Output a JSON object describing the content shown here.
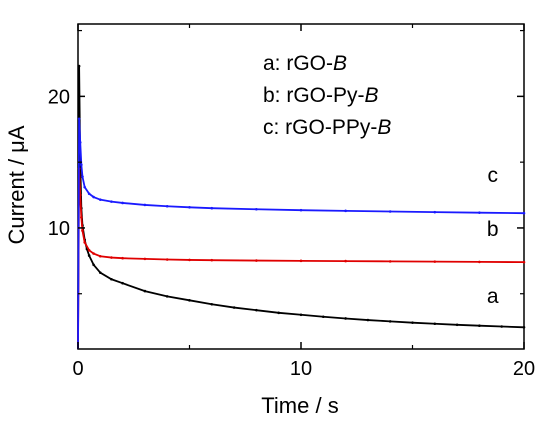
{
  "chart_data": {
    "type": "line",
    "xlabel": "Time / s",
    "ylabel": "Current / μA",
    "xlim": [
      0,
      20
    ],
    "ylim": [
      0.8,
      25.5
    ],
    "x_ticks": [
      0,
      10,
      20
    ],
    "y_ticks": [
      10,
      20
    ],
    "grid": false,
    "legend": {
      "placement": "top-center",
      "entries": [
        {
          "prefix": "a: rGO-",
          "suffix": "B"
        },
        {
          "prefix": "b: rGO-Py-",
          "suffix": "B"
        },
        {
          "prefix": "c: rGO-PPy-",
          "suffix": "B"
        }
      ]
    },
    "series": [
      {
        "name": "a",
        "color": "#000000",
        "points": [
          [
            0.05,
            22.3
          ],
          [
            0.1,
            15.0
          ],
          [
            0.15,
            11.5
          ],
          [
            0.2,
            10.2
          ],
          [
            0.3,
            9.1
          ],
          [
            0.4,
            8.4
          ],
          [
            0.5,
            7.9
          ],
          [
            0.7,
            7.2
          ],
          [
            1.0,
            6.6
          ],
          [
            1.5,
            6.1
          ],
          [
            2,
            5.8
          ],
          [
            3,
            5.2
          ],
          [
            4,
            4.8
          ],
          [
            5,
            4.5
          ],
          [
            6,
            4.2
          ],
          [
            7,
            3.95
          ],
          [
            8,
            3.75
          ],
          [
            9,
            3.55
          ],
          [
            10,
            3.4
          ],
          [
            11,
            3.25
          ],
          [
            12,
            3.12
          ],
          [
            13,
            3.0
          ],
          [
            14,
            2.9
          ],
          [
            15,
            2.8
          ],
          [
            16,
            2.72
          ],
          [
            17,
            2.64
          ],
          [
            18,
            2.57
          ],
          [
            19,
            2.51
          ],
          [
            20,
            2.45
          ]
        ]
      },
      {
        "name": "b",
        "color": "#e00000",
        "points": [
          [
            0.05,
            14.5
          ],
          [
            0.1,
            12.5
          ],
          [
            0.15,
            10.8
          ],
          [
            0.2,
            9.8
          ],
          [
            0.3,
            8.9
          ],
          [
            0.5,
            8.3
          ],
          [
            0.7,
            8.05
          ],
          [
            1.0,
            7.85
          ],
          [
            1.5,
            7.75
          ],
          [
            2,
            7.7
          ],
          [
            3,
            7.65
          ],
          [
            4,
            7.6
          ],
          [
            5,
            7.57
          ],
          [
            6,
            7.55
          ],
          [
            8,
            7.52
          ],
          [
            10,
            7.5
          ],
          [
            12,
            7.48
          ],
          [
            14,
            7.46
          ],
          [
            16,
            7.44
          ],
          [
            18,
            7.42
          ],
          [
            20,
            7.4
          ]
        ]
      },
      {
        "name": "c",
        "color": "#1a1aff",
        "points": [
          [
            0.05,
            18.3
          ],
          [
            0.1,
            16.5
          ],
          [
            0.15,
            14.8
          ],
          [
            0.2,
            13.9
          ],
          [
            0.3,
            13.1
          ],
          [
            0.5,
            12.6
          ],
          [
            0.7,
            12.35
          ],
          [
            1.0,
            12.15
          ],
          [
            1.5,
            12.0
          ],
          [
            2,
            11.9
          ],
          [
            3,
            11.75
          ],
          [
            4,
            11.65
          ],
          [
            5,
            11.57
          ],
          [
            6,
            11.5
          ],
          [
            8,
            11.42
          ],
          [
            10,
            11.35
          ],
          [
            12,
            11.3
          ],
          [
            14,
            11.25
          ],
          [
            16,
            11.2
          ],
          [
            18,
            11.16
          ],
          [
            20,
            11.12
          ]
        ]
      }
    ],
    "curve_labels": [
      {
        "text": "a",
        "x": 18.6,
        "y": 4.3
      },
      {
        "text": "b",
        "x": 18.6,
        "y": 9.4
      },
      {
        "text": "c",
        "x": 18.6,
        "y": 13.5
      }
    ]
  }
}
